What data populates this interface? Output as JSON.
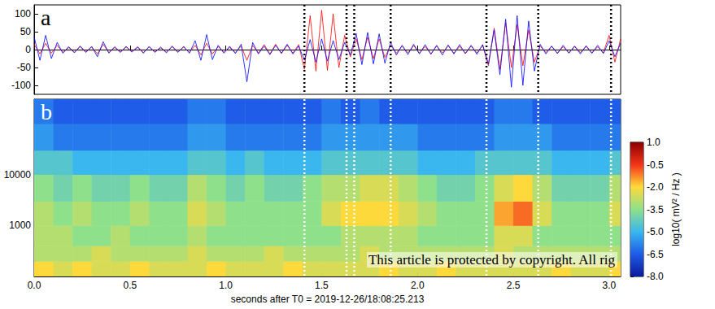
{
  "chart_data": [
    {
      "type": "line",
      "title": "a",
      "xlim": [
        0,
        3.06
      ],
      "xticks": [
        0,
        0.5,
        1,
        1.5,
        2,
        2.5,
        3
      ],
      "ylim": [
        -125,
        125
      ],
      "yticks": [
        -100,
        -50,
        0,
        50,
        100
      ],
      "tick_labels": "y",
      "grid": false,
      "vlines": [
        1.41,
        1.63,
        1.67,
        1.86,
        2.36,
        2.63,
        3.01
      ],
      "x": [
        0,
        0.03,
        0.06,
        0.09,
        0.12,
        0.15,
        0.18,
        0.21,
        0.24,
        0.27,
        0.3,
        0.33,
        0.36,
        0.39,
        0.42,
        0.45,
        0.48,
        0.51,
        0.54,
        0.57,
        0.6,
        0.63,
        0.66,
        0.69,
        0.72,
        0.75,
        0.78,
        0.81,
        0.84,
        0.87,
        0.9,
        0.93,
        0.96,
        0.99,
        1.02,
        1.05,
        1.08,
        1.11,
        1.14,
        1.17,
        1.2,
        1.23,
        1.26,
        1.29,
        1.32,
        1.35,
        1.38,
        1.41,
        1.44,
        1.47,
        1.5,
        1.53,
        1.56,
        1.59,
        1.62,
        1.65,
        1.68,
        1.71,
        1.74,
        1.77,
        1.8,
        1.83,
        1.86,
        1.89,
        1.92,
        1.95,
        1.98,
        2.01,
        2.04,
        2.07,
        2.1,
        2.13,
        2.16,
        2.19,
        2.22,
        2.25,
        2.28,
        2.31,
        2.34,
        2.37,
        2.4,
        2.43,
        2.46,
        2.49,
        2.52,
        2.55,
        2.58,
        2.61,
        2.64,
        2.67,
        2.7,
        2.73,
        2.76,
        2.79,
        2.82,
        2.85,
        2.88,
        2.91,
        2.94,
        2.97,
        3,
        3.03,
        3.06
      ],
      "series": [
        {
          "color": "#ff0000",
          "values": [
            15,
            -12,
            18,
            -10,
            12,
            -8,
            6,
            -7,
            8,
            -6,
            7,
            -12,
            15,
            -8,
            6,
            -6,
            7,
            -5,
            6,
            -8,
            7,
            -6,
            5,
            -7,
            8,
            -6,
            7,
            -8,
            12,
            -15,
            18,
            -12,
            8,
            -7,
            6,
            -8,
            10,
            -30,
            12,
            -10,
            14,
            -12,
            15,
            -11,
            12,
            -10,
            14,
            -55,
            95,
            -60,
            110,
            -58,
            100,
            -50,
            40,
            -20,
            30,
            -28,
            35,
            -25,
            30,
            -22,
            12,
            -10,
            10,
            -9,
            11,
            -10,
            9,
            -12,
            10,
            -9,
            11,
            -10,
            9,
            -11,
            10,
            -9,
            12,
            -45,
            60,
            -55,
            75,
            -50,
            70,
            -45,
            55,
            -35,
            10,
            -8,
            9,
            -10,
            8,
            -9,
            10,
            -8,
            9,
            -10,
            8,
            -9,
            40,
            -35,
            30
          ]
        },
        {
          "color": "#0000ff",
          "values": [
            35,
            -30,
            40,
            -25,
            20,
            -10,
            8,
            -9,
            10,
            -8,
            9,
            -20,
            22,
            -10,
            8,
            -8,
            9,
            -7,
            8,
            -10,
            9,
            -8,
            7,
            -9,
            10,
            -8,
            9,
            -10,
            25,
            -30,
            42,
            -28,
            12,
            -10,
            9,
            -11,
            15,
            -90,
            20,
            -12,
            10,
            -14,
            12,
            -10,
            15,
            -12,
            10,
            -30,
            28,
            -35,
            30,
            -32,
            25,
            -28,
            20,
            -15,
            45,
            -42,
            48,
            -40,
            44,
            -38,
            20,
            -15,
            12,
            -14,
            15,
            -12,
            14,
            -13,
            12,
            -15,
            13,
            -12,
            14,
            -11,
            12,
            -13,
            14,
            -40,
            55,
            -70,
            85,
            -105,
            95,
            -100,
            80,
            -60,
            15,
            -12,
            10,
            -11,
            12,
            -10,
            9,
            -12,
            11,
            -10,
            12,
            -11,
            25,
            -20,
            18
          ]
        }
      ]
    },
    {
      "type": "heatmap",
      "title": "b",
      "xlabel": "seconds after T0 = 2019-12-26/18:08:25.213",
      "xlim": [
        0,
        3.06
      ],
      "xticks": [
        {
          "value": 0,
          "label": "0.0"
        },
        {
          "value": 0.5,
          "label": "0.5"
        },
        {
          "value": 1,
          "label": "1.0"
        },
        {
          "value": 1.5,
          "label": "1.5"
        },
        {
          "value": 2,
          "label": "2.0"
        },
        {
          "value": 2.5,
          "label": "2.5"
        },
        {
          "value": 3,
          "label": "3.0"
        }
      ],
      "ylim": [
        100,
        300000
      ],
      "yticks": [
        1000,
        10000
      ],
      "log": "y",
      "grid": false,
      "vlines": [
        1.41,
        1.63,
        1.67,
        1.86,
        2.36,
        2.63,
        3.01
      ],
      "annotations": [
        "This article is protected by copyright. All rig"
      ],
      "x_edges": [
        0,
        0.1,
        0.2,
        0.3,
        0.4,
        0.5,
        0.6,
        0.7,
        0.8,
        0.9,
        1,
        1.1,
        1.2,
        1.3,
        1.4,
        1.5,
        1.6,
        1.7,
        1.8,
        1.9,
        2,
        2.1,
        2.2,
        2.3,
        2.4,
        2.5,
        2.6,
        2.7,
        2.8,
        2.9,
        3,
        3.06
      ],
      "y_edges": [
        100,
        200,
        400,
        1000,
        3000,
        10000,
        30000,
        100000,
        300000
      ],
      "cells": [
        [
          -2,
          -2.5,
          -2,
          -2.5,
          -2.5,
          -2,
          -2.5,
          -2.5,
          -2.5,
          -2,
          -2.5,
          -2.5,
          -2.5,
          -2,
          -2.5,
          -2.5,
          -2.5,
          -2.5,
          -2,
          -2.5,
          -2.5,
          -2,
          -2.5,
          -2.5,
          -2.5,
          -2.5,
          -2.5,
          -2,
          -2.5,
          -2.5,
          -2
        ],
        [
          -3,
          -3,
          -3,
          -2.5,
          -3,
          -3,
          -3,
          -3,
          -2.5,
          -3,
          -3,
          -3,
          -2.5,
          -3,
          -3,
          -3,
          -3,
          -2.5,
          -3,
          -3,
          -3,
          -3,
          -3,
          -3,
          -2.5,
          -3,
          -3,
          -3,
          -3,
          -3,
          -3
        ],
        [
          -3,
          -3,
          -3.5,
          -3.5,
          -3,
          -3.5,
          -3.5,
          -3.5,
          -3,
          -3.5,
          -3.5,
          -3.5,
          -3.5,
          -3.5,
          -3.5,
          -3.5,
          -3,
          -3,
          -3,
          -3,
          -3.5,
          -3.5,
          -3.5,
          -3.5,
          -2.5,
          -2.5,
          -3.5,
          -3.5,
          -3.5,
          -3.5,
          -3.5
        ],
        [
          -3,
          -3.5,
          -3,
          -3.5,
          -3.5,
          -3,
          -3.5,
          -3.5,
          -2.5,
          -3,
          -3.5,
          -3.5,
          -3.5,
          -3.5,
          -3.5,
          -2.5,
          -2,
          -2,
          -2,
          -2.5,
          -3,
          -3.5,
          -3.5,
          -3.5,
          -1.5,
          -1,
          -2.5,
          -3.5,
          -3.5,
          -3.5,
          -2.5
        ],
        [
          -3.5,
          -4,
          -3.5,
          -4,
          -4,
          -3.5,
          -4,
          -4,
          -3,
          -3.5,
          -4,
          -3.5,
          -4,
          -4,
          -3.5,
          -3,
          -3,
          -2.5,
          -2.5,
          -3,
          -3.5,
          -4,
          -4,
          -3.5,
          -2.5,
          -2,
          -3,
          -4,
          -4,
          -4,
          -3
        ],
        [
          -4.5,
          -4.5,
          -5,
          -5,
          -5,
          -5,
          -5,
          -5,
          -4.5,
          -4.5,
          -5,
          -4.5,
          -5,
          -5,
          -5,
          -4.5,
          -4.5,
          -4.5,
          -4.5,
          -4.5,
          -5,
          -5,
          -5,
          -4.5,
          -4.5,
          -4.5,
          -4.5,
          -5,
          -5,
          -5,
          -4.5
        ],
        [
          -5.5,
          -6,
          -6,
          -6,
          -6,
          -6,
          -6,
          -6,
          -5.5,
          -5.5,
          -6,
          -6,
          -6,
          -6,
          -6,
          -5.5,
          -5.5,
          -5.5,
          -5.5,
          -5.5,
          -6,
          -6,
          -6,
          -6,
          -5.5,
          -5.5,
          -5.5,
          -6,
          -6,
          -6,
          -6
        ],
        [
          -6,
          -6.5,
          -6.5,
          -6.5,
          -6.5,
          -6.5,
          -6.5,
          -6.5,
          -6,
          -6,
          -6.5,
          -6.5,
          -6.5,
          -6.5,
          -6.5,
          -6,
          -6.5,
          -6,
          -6.5,
          -6.5,
          -6.5,
          -6.5,
          -6.5,
          -6.5,
          -6,
          -6,
          -6.5,
          -6.5,
          -6.5,
          -6.5,
          -6.5
        ]
      ],
      "colorbar": {
        "label": "log10( mV² / Hz )",
        "range": [
          -8,
          1
        ],
        "ticks": [
          {
            "value": 1,
            "label": "1.0"
          },
          {
            "value": -0.5,
            "label": "-0.5"
          },
          {
            "value": -2,
            "label": "-2.0"
          },
          {
            "value": -3.5,
            "label": "-3.5"
          },
          {
            "value": -5,
            "label": "-5.0"
          },
          {
            "value": -6.5,
            "label": "-6.5"
          },
          {
            "value": -8,
            "label": "-8.0"
          }
        ]
      }
    }
  ]
}
